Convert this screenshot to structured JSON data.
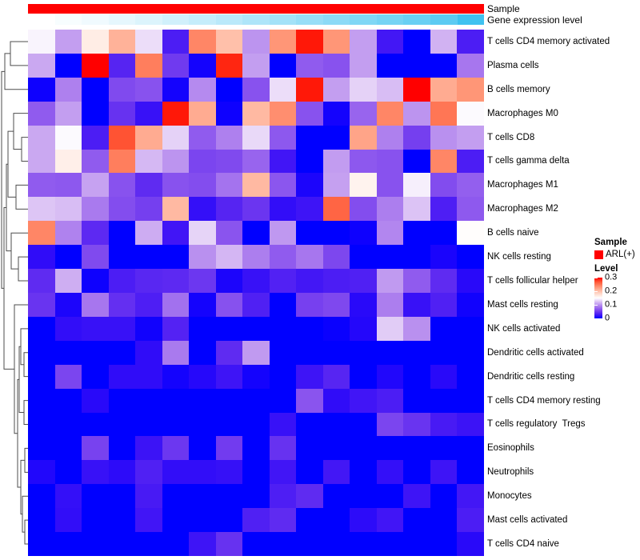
{
  "annotations": {
    "sample": {
      "label": "Sample",
      "color": "#ff0000"
    },
    "gene_expression": {
      "label": "Gene expression level",
      "color_low": "#ffffff",
      "color_high": "#3fc2f0",
      "values": [
        0.0,
        0.04,
        0.08,
        0.13,
        0.18,
        0.24,
        0.3,
        0.36,
        0.42,
        0.48,
        0.54,
        0.6,
        0.66,
        0.72,
        0.78,
        0.85,
        1.0
      ]
    }
  },
  "legend": {
    "sample": {
      "title": "Sample",
      "items": [
        {
          "label": "ARL(+)",
          "color": "#ff0000"
        }
      ]
    },
    "level": {
      "title": "Level",
      "ticks": [
        {
          "label": "0.3",
          "value": 0.3
        },
        {
          "label": "0.2",
          "value": 0.2
        },
        {
          "label": "0.1",
          "value": 0.1
        },
        {
          "label": "0",
          "value": 0.0
        }
      ],
      "color_max": "#ff0000",
      "color_mid": "#ffffff",
      "color_min": "#0000ff"
    }
  },
  "chart_data": {
    "type": "heatmap",
    "title": "",
    "n_columns": 17,
    "column_labels_shown": false,
    "scale": {
      "min": 0,
      "mid": 0.15,
      "max": 0.3,
      "min_color": "#0000ff",
      "mid_color": "#ffffff",
      "max_color": "#ff0000"
    },
    "rows": [
      "T cells CD4 memory activated",
      "Plasma cells",
      "B cells memory",
      "Macrophages M0",
      "T cells CD8",
      "T cells gamma delta",
      "Macrophages M1",
      "Macrophages M2",
      "B cells naive",
      "NK cells resting",
      "T cells follicular helper",
      "Mast cells resting",
      "NK cells activated",
      "Dendritic cells activated",
      "Dendritic cells resting",
      "T cells CD4 memory resting",
      "T cells regulatory  Tregs",
      "Eosinophils",
      "Neutrophils",
      "Monocytes",
      "Mast cells activated",
      "T cells CD4 naive"
    ],
    "values": [
      [
        0.145,
        0.105,
        0.165,
        0.21,
        0.135,
        0.03,
        0.24,
        0.2,
        0.1,
        0.23,
        0.295,
        0.23,
        0.105,
        0.025,
        0,
        0.115,
        0.03
      ],
      [
        0.11,
        0,
        0.3,
        0.035,
        0.245,
        0.05,
        0.005,
        0.29,
        0.105,
        0,
        0.07,
        0.065,
        0.105,
        0,
        0,
        0,
        0.085
      ],
      [
        0.003,
        0.09,
        0,
        0.06,
        0.065,
        0.005,
        0.095,
        0,
        0.065,
        0.135,
        0.295,
        0.105,
        0.13,
        0.12,
        0.3,
        0.215,
        0.23
      ],
      [
        0.07,
        0.105,
        0,
        0.045,
        0.02,
        0.295,
        0.215,
        0.003,
        0.205,
        0.235,
        0.065,
        0.005,
        0.075,
        0.24,
        0.1,
        0.25,
        0.148
      ],
      [
        0.11,
        0.148,
        0.03,
        0.27,
        0.215,
        0.13,
        0.07,
        0.09,
        0.133,
        0.068,
        0,
        0,
        0.22,
        0.09,
        0.053,
        0.098,
        0.105
      ],
      [
        0.11,
        0.163,
        0.07,
        0.245,
        0.118,
        0.1,
        0.057,
        0.06,
        0.075,
        0.024,
        0,
        0.104,
        0.068,
        0.065,
        0,
        0.24,
        0.03
      ],
      [
        0.07,
        0.068,
        0.107,
        0.065,
        0.04,
        0.065,
        0.062,
        0.083,
        0.205,
        0.067,
        0.008,
        0.106,
        0.16,
        0.065,
        0.143,
        0.061,
        0.072
      ],
      [
        0.124,
        0.12,
        0.087,
        0.062,
        0.053,
        0.205,
        0.018,
        0.035,
        0.047,
        0.017,
        0.023,
        0.26,
        0.062,
        0.089,
        0.123,
        0.031,
        0.069
      ],
      [
        0.24,
        0.091,
        0.039,
        0,
        0.112,
        0.024,
        0.131,
        0.066,
        0,
        0.102,
        0,
        0,
        0.003,
        0.093,
        0,
        0,
        0.152
      ],
      [
        0.016,
        0,
        0.06,
        0,
        0,
        0,
        0.098,
        0.117,
        0.089,
        0.07,
        0.085,
        0.058,
        0,
        0,
        0,
        0.007,
        0
      ],
      [
        0.04,
        0.113,
        0.003,
        0.03,
        0.037,
        0.039,
        0.048,
        0.008,
        0.02,
        0.033,
        0.025,
        0.03,
        0.032,
        0.103,
        0.07,
        0.04,
        0.013
      ],
      [
        0.046,
        0.008,
        0.085,
        0.043,
        0.031,
        0.082,
        0.005,
        0.064,
        0.032,
        0,
        0.054,
        0.059,
        0.013,
        0.089,
        0.02,
        0.032,
        0.004
      ],
      [
        0,
        0.017,
        0.02,
        0.02,
        0.004,
        0.034,
        0,
        0,
        0,
        0,
        0,
        0.002,
        0.011,
        0.127,
        0.098,
        0,
        0
      ],
      [
        0,
        0,
        0,
        0,
        0.016,
        0.087,
        0,
        0.04,
        0.103,
        0,
        0,
        0,
        0,
        0,
        0,
        0,
        0
      ],
      [
        0,
        0.057,
        0,
        0.016,
        0.016,
        0.005,
        0.012,
        0.023,
        0.005,
        0,
        0.023,
        0.036,
        0,
        0.01,
        0,
        0.013,
        0
      ],
      [
        0,
        0,
        0.013,
        0,
        0,
        0,
        0,
        0,
        0,
        0,
        0.066,
        0.016,
        0.024,
        0.03,
        0,
        0,
        0
      ],
      [
        0,
        0,
        0,
        0,
        0,
        0,
        0,
        0,
        0,
        0.02,
        0,
        0,
        0,
        0.057,
        0.046,
        0.028,
        0.022
      ],
      [
        0,
        0,
        0.055,
        0,
        0.022,
        0.048,
        0,
        0.051,
        0,
        0.045,
        0,
        0,
        0,
        0,
        0,
        0,
        0
      ],
      [
        0.01,
        0,
        0.02,
        0.015,
        0.032,
        0.017,
        0.017,
        0.019,
        0,
        0.024,
        0,
        0.025,
        0,
        0.018,
        0,
        0.023,
        0
      ],
      [
        0,
        0.018,
        0,
        0,
        0.028,
        0,
        0,
        0,
        0,
        0.031,
        0.04,
        0,
        0,
        0,
        0.023,
        0,
        0.025
      ],
      [
        0,
        0.017,
        0,
        0,
        0.024,
        0,
        0,
        0,
        0.032,
        0.04,
        0,
        0,
        0.015,
        0.024,
        0,
        0,
        0.03
      ],
      [
        0,
        0,
        0,
        0,
        0,
        0,
        0.023,
        0.045,
        0,
        0,
        0,
        0,
        0,
        0,
        0,
        0,
        0.013
      ]
    ],
    "row_dendrogram": {
      "merges": [
        [
          "L0",
          "L1",
          13
        ],
        [
          "m0",
          "L2",
          6
        ],
        [
          "L4",
          "L5",
          27
        ],
        [
          "L3",
          "m2",
          17
        ],
        [
          "L6",
          "L7",
          20
        ],
        [
          "m3",
          "m4",
          10
        ],
        [
          "L9",
          "L10",
          23
        ],
        [
          "L8",
          "m6",
          14
        ],
        [
          "m5",
          "m7",
          8
        ],
        [
          "L13",
          "L14",
          30
        ],
        [
          "L12",
          "m9",
          26
        ],
        [
          "L15",
          "L16",
          30
        ],
        [
          "m10",
          "m11",
          24
        ],
        [
          "L17",
          "L18",
          31
        ],
        [
          "L20",
          "L21",
          31
        ],
        [
          "L19",
          "m14",
          28
        ],
        [
          "m13",
          "m15",
          26
        ],
        [
          "m12",
          "m16",
          22
        ],
        [
          "L11",
          "m17",
          18
        ],
        [
          "m8",
          "m18",
          5
        ],
        [
          "m1",
          "m19",
          2
        ]
      ]
    }
  }
}
